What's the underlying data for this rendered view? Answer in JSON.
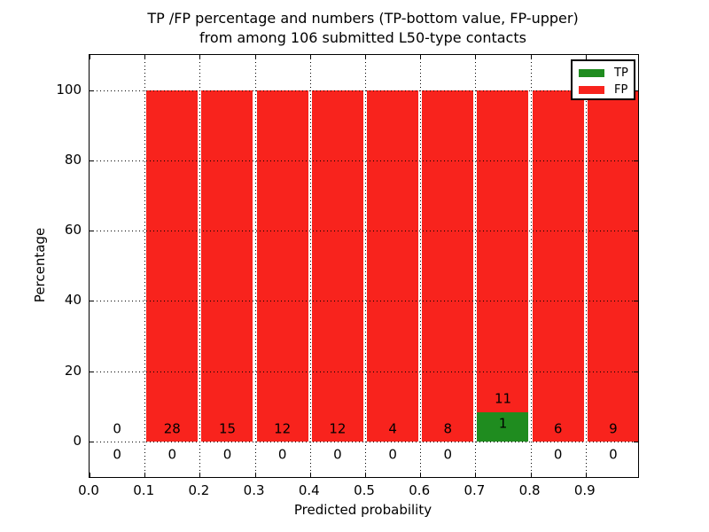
{
  "chart_data": {
    "type": "bar",
    "stacked": true,
    "title": "TP /FP percentage and numbers (TP-bottom value, FP-upper)\nfrom among 106 submitted L50-type contacts",
    "title_line1": "TP /FP percentage and numbers (TP-bottom value, FP-upper)",
    "title_line2": "from among 106 submitted L50-type contacts",
    "xlabel": "Predicted probability",
    "ylabel": "Percentage",
    "total_contacts": 106,
    "xlim": [
      0.0,
      1.0
    ],
    "ylim": [
      -10,
      110
    ],
    "grid": true,
    "x_ticks": [
      {
        "value": 0.0,
        "label": "0.0"
      },
      {
        "value": 0.1,
        "label": "0.1"
      },
      {
        "value": 0.2,
        "label": "0.2"
      },
      {
        "value": 0.3,
        "label": "0.3"
      },
      {
        "value": 0.4,
        "label": "0.4"
      },
      {
        "value": 0.5,
        "label": "0.5"
      },
      {
        "value": 0.6,
        "label": "0.6"
      },
      {
        "value": 0.7,
        "label": "0.7"
      },
      {
        "value": 0.8,
        "label": "0.8"
      },
      {
        "value": 0.9,
        "label": "0.9"
      }
    ],
    "y_ticks": [
      {
        "value": 0,
        "label": "0"
      },
      {
        "value": 20,
        "label": "20"
      },
      {
        "value": 40,
        "label": "40"
      },
      {
        "value": 60,
        "label": "60"
      },
      {
        "value": 80,
        "label": "80"
      },
      {
        "value": 100,
        "label": "100"
      }
    ],
    "bins": [
      {
        "range": [
          0.0,
          0.1
        ],
        "tp": 0,
        "fp": 0
      },
      {
        "range": [
          0.1,
          0.2
        ],
        "tp": 0,
        "fp": 28
      },
      {
        "range": [
          0.2,
          0.3
        ],
        "tp": 0,
        "fp": 15
      },
      {
        "range": [
          0.3,
          0.4
        ],
        "tp": 0,
        "fp": 12
      },
      {
        "range": [
          0.4,
          0.5
        ],
        "tp": 0,
        "fp": 12
      },
      {
        "range": [
          0.5,
          0.6
        ],
        "tp": 0,
        "fp": 4
      },
      {
        "range": [
          0.6,
          0.7
        ],
        "tp": 0,
        "fp": 8
      },
      {
        "range": [
          0.7,
          0.8
        ],
        "tp": 1,
        "fp": 11
      },
      {
        "range": [
          0.8,
          0.9
        ],
        "tp": 0,
        "fp": 6
      },
      {
        "range": [
          0.9,
          1.0
        ],
        "tp": 0,
        "fp": 9
      }
    ],
    "legend": {
      "position": "upper right",
      "entries": [
        {
          "label": "TP",
          "color": "#1f8c1f"
        },
        {
          "label": "FP",
          "color": "#f8231d"
        }
      ]
    }
  },
  "colors": {
    "tp_green": "#1f8c1f",
    "fp_red": "#f8231d",
    "grid": "#000000",
    "background": "#ffffff"
  }
}
